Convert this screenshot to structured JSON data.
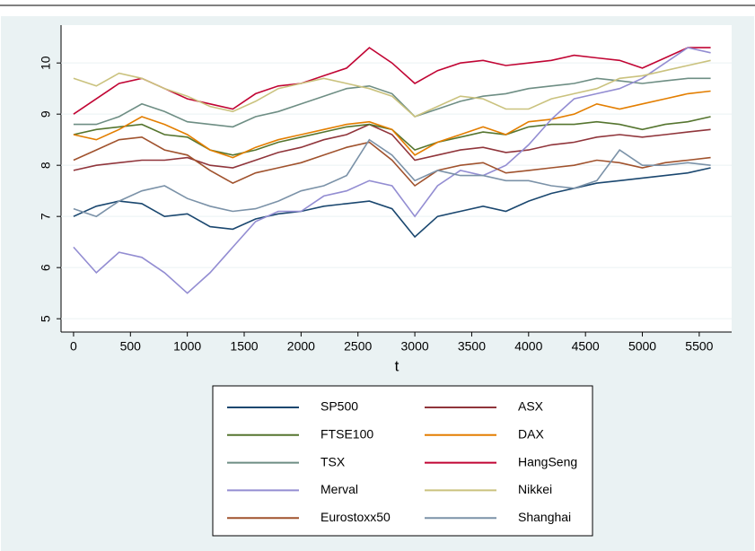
{
  "chart_data": {
    "type": "line",
    "x_label": "t",
    "x": [
      0,
      200,
      400,
      600,
      800,
      1000,
      1200,
      1400,
      1600,
      1800,
      2000,
      2200,
      2400,
      2600,
      2800,
      3000,
      3200,
      3400,
      3600,
      3800,
      4000,
      4200,
      4400,
      4600,
      4800,
      5000,
      5200,
      5400,
      5600
    ],
    "xlim": [
      -110,
      5785
    ],
    "ylim": [
      4.74,
      10.74
    ],
    "xticks": [
      0,
      500,
      1000,
      1500,
      2000,
      2500,
      3000,
      3500,
      4000,
      4500,
      5000,
      5500
    ],
    "yticks": [
      5,
      6,
      7,
      8,
      9,
      10
    ],
    "grid": true,
    "series": [
      {
        "name": "SP500",
        "color": "#1a476f",
        "values": [
          7.0,
          7.2,
          7.3,
          7.25,
          7.0,
          7.05,
          6.8,
          6.75,
          6.95,
          7.05,
          7.1,
          7.2,
          7.25,
          7.3,
          7.15,
          6.6,
          7.0,
          7.1,
          7.2,
          7.1,
          7.3,
          7.45,
          7.55,
          7.65,
          7.7,
          7.75,
          7.8,
          7.85,
          7.95
        ]
      },
      {
        "name": "ASX",
        "color": "#90353b",
        "values": [
          7.9,
          8.0,
          8.05,
          8.1,
          8.1,
          8.15,
          8.0,
          7.95,
          8.1,
          8.25,
          8.35,
          8.5,
          8.6,
          8.8,
          8.6,
          8.1,
          8.2,
          8.3,
          8.35,
          8.25,
          8.3,
          8.4,
          8.45,
          8.55,
          8.6,
          8.55,
          8.6,
          8.65,
          8.7
        ]
      },
      {
        "name": "FTSE100",
        "color": "#55752f",
        "values": [
          8.6,
          8.7,
          8.75,
          8.8,
          8.6,
          8.55,
          8.3,
          8.2,
          8.3,
          8.45,
          8.55,
          8.65,
          8.75,
          8.8,
          8.7,
          8.3,
          8.45,
          8.55,
          8.65,
          8.6,
          8.75,
          8.8,
          8.8,
          8.85,
          8.8,
          8.7,
          8.8,
          8.85,
          8.95
        ]
      },
      {
        "name": "DAX",
        "color": "#e37e00",
        "values": [
          8.6,
          8.5,
          8.7,
          8.95,
          8.8,
          8.6,
          8.3,
          8.15,
          8.35,
          8.5,
          8.6,
          8.7,
          8.8,
          8.85,
          8.7,
          8.2,
          8.45,
          8.6,
          8.75,
          8.6,
          8.85,
          8.9,
          9.0,
          9.2,
          9.1,
          9.2,
          9.3,
          9.4,
          9.45
        ]
      },
      {
        "name": "TSX",
        "color": "#6e8e84",
        "values": [
          8.8,
          8.8,
          8.95,
          9.2,
          9.05,
          8.85,
          8.8,
          8.75,
          8.95,
          9.05,
          9.2,
          9.35,
          9.5,
          9.55,
          9.4,
          8.95,
          9.1,
          9.25,
          9.35,
          9.4,
          9.5,
          9.55,
          9.6,
          9.7,
          9.65,
          9.6,
          9.65,
          9.7,
          9.7
        ]
      },
      {
        "name": "HangSeng",
        "color": "#c10534",
        "values": [
          9.0,
          9.3,
          9.6,
          9.7,
          9.5,
          9.3,
          9.2,
          9.1,
          9.4,
          9.55,
          9.6,
          9.75,
          9.9,
          10.3,
          10.0,
          9.6,
          9.85,
          10.0,
          10.05,
          9.95,
          10.0,
          10.05,
          10.15,
          10.1,
          10.05,
          9.9,
          10.1,
          10.3,
          10.3
        ]
      },
      {
        "name": "Merval",
        "color": "#938dd2",
        "values": [
          6.4,
          5.9,
          6.3,
          6.2,
          5.9,
          5.5,
          5.9,
          6.4,
          6.9,
          7.1,
          7.1,
          7.4,
          7.5,
          7.7,
          7.6,
          7.0,
          7.6,
          7.9,
          7.8,
          8.0,
          8.4,
          8.9,
          9.3,
          9.4,
          9.5,
          9.7,
          10.0,
          10.3,
          10.2
        ]
      },
      {
        "name": "Nikkei",
        "color": "#cac27e",
        "values": [
          9.7,
          9.55,
          9.8,
          9.7,
          9.5,
          9.35,
          9.15,
          9.05,
          9.25,
          9.5,
          9.6,
          9.7,
          9.6,
          9.5,
          9.35,
          8.95,
          9.15,
          9.35,
          9.3,
          9.1,
          9.1,
          9.3,
          9.4,
          9.5,
          9.7,
          9.75,
          9.85,
          9.95,
          10.05
        ]
      },
      {
        "name": "Eurostoxx50",
        "color": "#a0522d",
        "values": [
          8.1,
          8.3,
          8.5,
          8.55,
          8.3,
          8.2,
          7.9,
          7.65,
          7.85,
          7.95,
          8.05,
          8.2,
          8.35,
          8.45,
          8.1,
          7.6,
          7.9,
          8.0,
          8.05,
          7.85,
          7.9,
          7.95,
          8.0,
          8.1,
          8.05,
          7.95,
          8.05,
          8.1,
          8.15
        ]
      },
      {
        "name": "Shanghai",
        "color": "#7b92a8",
        "values": [
          7.15,
          7.0,
          7.3,
          7.5,
          7.6,
          7.35,
          7.2,
          7.1,
          7.15,
          7.3,
          7.5,
          7.6,
          7.8,
          8.5,
          8.2,
          7.7,
          7.9,
          7.8,
          7.8,
          7.7,
          7.7,
          7.6,
          7.55,
          7.7,
          8.3,
          8.0,
          8.0,
          8.05,
          8.0
        ]
      }
    ]
  }
}
